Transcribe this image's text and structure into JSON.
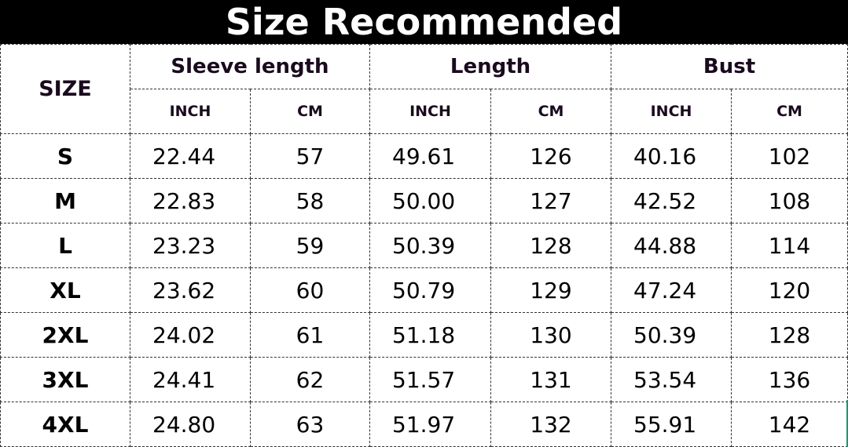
{
  "title": "Size Recommended",
  "header": {
    "size": "SIZE",
    "groups": [
      "Sleeve length",
      "Length",
      "Bust"
    ],
    "units": [
      "INCH",
      "CM",
      "INCH",
      "CM",
      "INCH",
      "CM"
    ]
  },
  "rows": [
    [
      "S",
      "22.44",
      "57",
      "49.61",
      "126",
      "40.16",
      "102"
    ],
    [
      "M",
      "22.83",
      "58",
      "50.00",
      "127",
      "42.52",
      "108"
    ],
    [
      "L",
      "23.23",
      "59",
      "50.39",
      "128",
      "44.88",
      "114"
    ],
    [
      "XL",
      "23.62",
      "60",
      "50.79",
      "129",
      "47.24",
      "120"
    ],
    [
      "2XL",
      "24.02",
      "61",
      "51.18",
      "130",
      "50.39",
      "128"
    ],
    [
      "3XL",
      "24.41",
      "62",
      "51.57",
      "131",
      "53.54",
      "136"
    ],
    [
      "4XL",
      "24.80",
      "63",
      "51.97",
      "132",
      "55.91",
      "142"
    ]
  ],
  "colors": {
    "title_bg": "#000000",
    "title_text": "#ffffff",
    "accent_edge": "#1a9a6a"
  }
}
